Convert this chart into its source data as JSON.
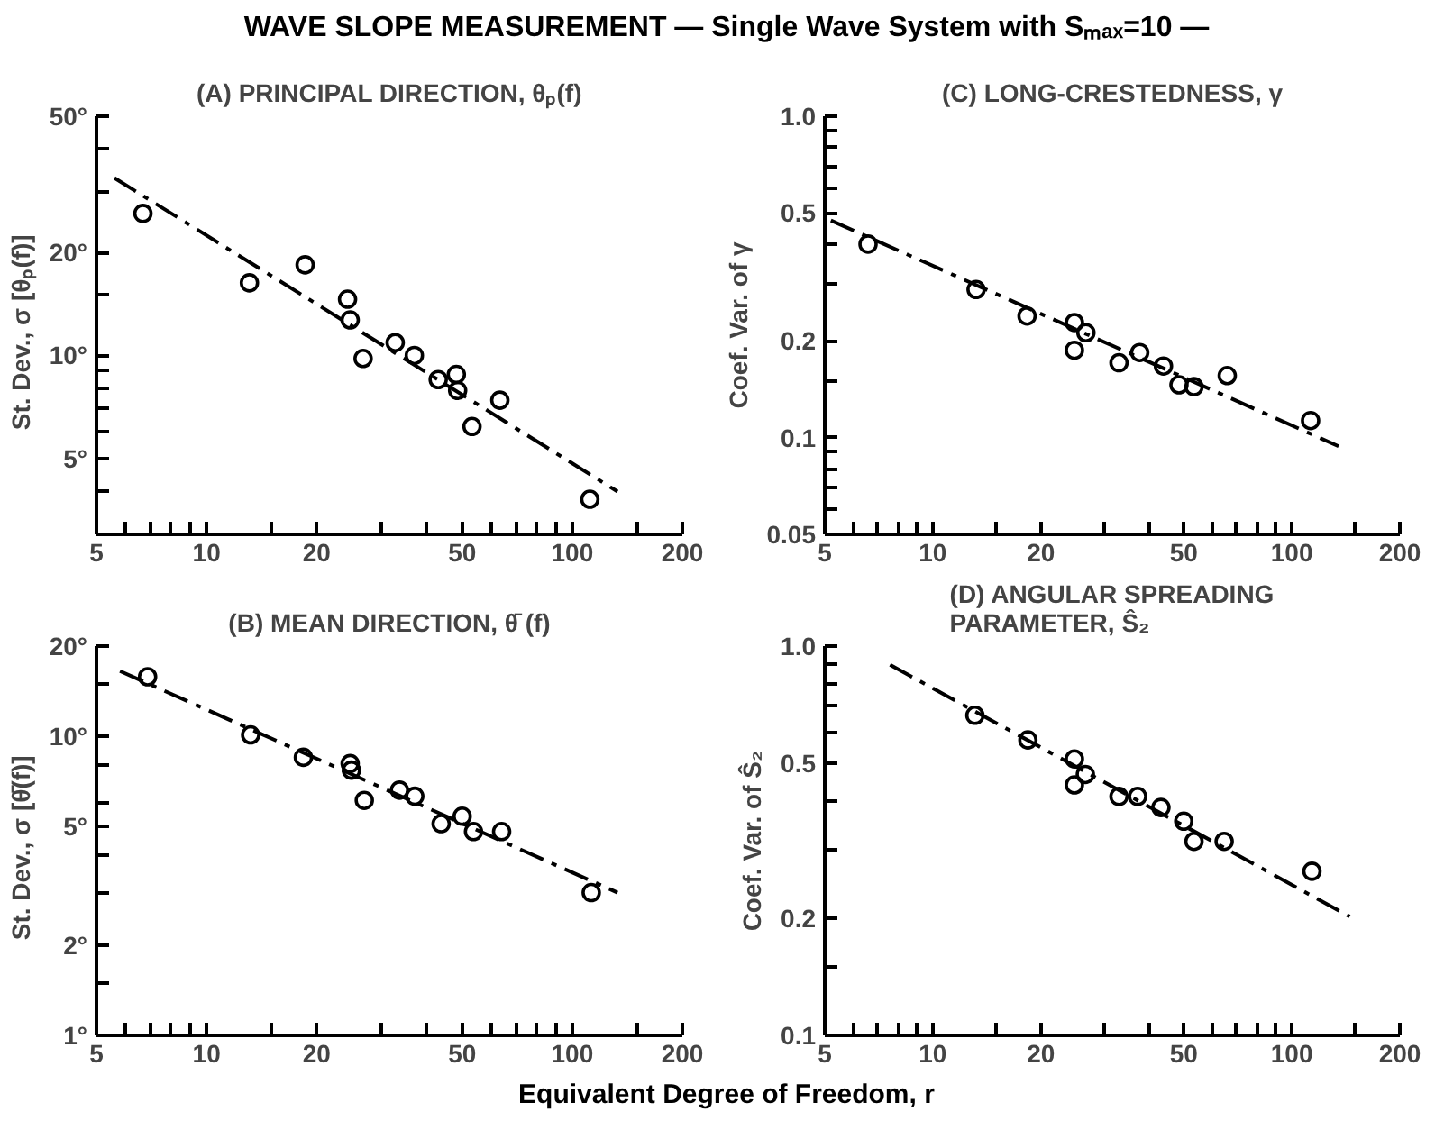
{
  "chart_data": [
    {
      "type": "other",
      "title": "WAVE SLOPE MEASUREMENT   — Single Wave System with Sₘₐₓ=10 —",
      "xlabel": "Equivalent Degree of Freedom, r"
    },
    {
      "type": "scatter",
      "title": "(A) PRINCIPAL DIRECTION, θₚ(f)",
      "ylabel": "St. Dev.,   σ [θₚ(f)]",
      "log": "xy",
      "grid": false,
      "xlim": [
        5,
        200
      ],
      "xticks": [
        5,
        {
          "value": 6,
          "label": null
        },
        {
          "value": 7,
          "label": null
        },
        {
          "value": 8,
          "label": null
        },
        {
          "value": 9,
          "label": null
        },
        10,
        {
          "value": 15,
          "label": null
        },
        20,
        {
          "value": 30,
          "label": null
        },
        {
          "value": 40,
          "label": null
        },
        50,
        {
          "value": 60,
          "label": null
        },
        {
          "value": 70,
          "label": null
        },
        {
          "value": 80,
          "label": null
        },
        {
          "value": 90,
          "label": null
        },
        100,
        {
          "value": 150,
          "label": null
        },
        200
      ],
      "ylim": [
        3,
        50
      ],
      "yticks": [
        {
          "value": 50,
          "label": "50°"
        },
        {
          "value": 40,
          "label": null
        },
        {
          "value": 30,
          "label": null
        },
        {
          "value": 20,
          "label": "20°"
        },
        {
          "value": 15,
          "label": null
        },
        {
          "value": 10,
          "label": "10°"
        },
        {
          "value": 9,
          "label": null
        },
        {
          "value": 8,
          "label": null
        },
        {
          "value": 7,
          "label": null
        },
        {
          "value": 6,
          "label": null
        },
        {
          "value": 5,
          "label": "5°"
        },
        {
          "value": 4,
          "label": null
        }
      ],
      "series": [
        {
          "type": "scatter",
          "marker": "circle",
          "color": "#000000",
          "x": [
            6.7,
            13.1,
            18.6,
            24.3,
            24.7,
            26.8,
            32.8,
            37.0,
            43.0,
            48.2,
            48.6,
            53.2,
            63.4,
            111.7
          ],
          "values": [
            26,
            16.3,
            18.4,
            14.6,
            12.7,
            9.8,
            10.9,
            10.0,
            8.5,
            8.8,
            7.9,
            6.2,
            7.4,
            3.8
          ]
        },
        {
          "type": "line",
          "line_style": "dashdot",
          "color": "#000000",
          "x": [
            5.6,
            133
          ],
          "values": [
            33,
            4.0
          ]
        }
      ]
    },
    {
      "type": "scatter",
      "title": "(C) LONG-CRESTEDNESS, γ",
      "ylabel": "Coef. Var. of γ",
      "log": "xy",
      "grid": false,
      "xlim": [
        5,
        200
      ],
      "xticks": [
        5,
        {
          "value": 6,
          "label": null
        },
        {
          "value": 7,
          "label": null
        },
        {
          "value": 8,
          "label": null
        },
        {
          "value": 9,
          "label": null
        },
        10,
        {
          "value": 15,
          "label": null
        },
        20,
        {
          "value": 30,
          "label": null
        },
        {
          "value": 40,
          "label": null
        },
        50,
        {
          "value": 60,
          "label": null
        },
        {
          "value": 70,
          "label": null
        },
        {
          "value": 80,
          "label": null
        },
        {
          "value": 90,
          "label": null
        },
        100,
        {
          "value": 150,
          "label": null
        },
        200
      ],
      "ylim": [
        0.05,
        1.0
      ],
      "yticks": [
        {
          "value": 1.0,
          "label": "1.0"
        },
        {
          "value": 0.9,
          "label": null
        },
        {
          "value": 0.8,
          "label": null
        },
        {
          "value": 0.7,
          "label": null
        },
        {
          "value": 0.6,
          "label": null
        },
        0.5,
        {
          "value": 0.4,
          "label": null
        },
        {
          "value": 0.3,
          "label": null
        },
        0.2,
        {
          "value": 0.15,
          "label": null
        },
        0.1,
        {
          "value": 0.09,
          "label": null
        },
        {
          "value": 0.08,
          "label": null
        },
        {
          "value": 0.07,
          "label": null
        },
        {
          "value": 0.06,
          "label": null
        },
        0.05
      ],
      "series": [
        {
          "type": "scatter",
          "marker": "circle",
          "color": "#000000",
          "x": [
            6.6,
            13.2,
            18.3,
            24.8,
            24.8,
            26.7,
            33.0,
            37.7,
            43.9,
            48.5,
            53.4,
            66.1,
            112.8
          ],
          "values": [
            0.4,
            0.289,
            0.239,
            0.228,
            0.187,
            0.212,
            0.171,
            0.184,
            0.167,
            0.146,
            0.144,
            0.156,
            0.113
          ]
        },
        {
          "type": "line",
          "line_style": "dashdot",
          "color": "#000000",
          "x": [
            5.2,
            135
          ],
          "values": [
            0.474,
            0.094
          ]
        }
      ]
    },
    {
      "type": "scatter",
      "title": "(B) MEAN DIRECTION, θ̄ (f)",
      "ylabel": "St. Dev.,   σ [θ̄(f)]",
      "log": "xy",
      "grid": false,
      "xlim": [
        5,
        200
      ],
      "xticks": [
        5,
        {
          "value": 6,
          "label": null
        },
        {
          "value": 7,
          "label": null
        },
        {
          "value": 8,
          "label": null
        },
        {
          "value": 9,
          "label": null
        },
        10,
        {
          "value": 15,
          "label": null
        },
        20,
        {
          "value": 30,
          "label": null
        },
        {
          "value": 40,
          "label": null
        },
        50,
        {
          "value": 60,
          "label": null
        },
        {
          "value": 70,
          "label": null
        },
        {
          "value": 80,
          "label": null
        },
        {
          "value": 90,
          "label": null
        },
        100,
        {
          "value": 150,
          "label": null
        },
        200
      ],
      "ylim": [
        1,
        20
      ],
      "yticks": [
        {
          "value": 20,
          "label": "20°"
        },
        {
          "value": 15,
          "label": null
        },
        {
          "value": 10,
          "label": "10°"
        },
        {
          "value": 8,
          "label": null
        },
        {
          "value": 6,
          "label": null
        },
        {
          "value": 5,
          "label": "5°"
        },
        {
          "value": 4,
          "label": null
        },
        {
          "value": 3,
          "label": null
        },
        {
          "value": 2,
          "label": "2°"
        },
        {
          "value": 1.5,
          "label": null
        },
        {
          "value": 1,
          "label": "1°"
        }
      ],
      "series": [
        {
          "type": "scatter",
          "marker": "circle",
          "color": "#000000",
          "x": [
            6.9,
            13.2,
            18.4,
            24.7,
            24.9,
            27.0,
            33.7,
            37.1,
            43.8,
            50.0,
            53.7,
            64.1,
            112.7
          ],
          "values": [
            15.8,
            10.1,
            8.5,
            8.1,
            7.7,
            6.1,
            6.6,
            6.3,
            5.1,
            5.4,
            4.8,
            4.8,
            3.0
          ]
        },
        {
          "type": "line",
          "line_style": "dashdot",
          "color": "#000000",
          "x": [
            5.8,
            133
          ],
          "values": [
            16.5,
            3.0
          ]
        }
      ]
    },
    {
      "type": "scatter",
      "title": "(D) ANGULAR SPREADING\nPARAMETER, Ŝ₂",
      "ylabel": "Coef. Var. of Ŝ₂",
      "log": "xy",
      "grid": false,
      "xlim": [
        5,
        200
      ],
      "xticks": [
        5,
        {
          "value": 6,
          "label": null
        },
        {
          "value": 7,
          "label": null
        },
        {
          "value": 8,
          "label": null
        },
        {
          "value": 9,
          "label": null
        },
        10,
        {
          "value": 15,
          "label": null
        },
        20,
        {
          "value": 30,
          "label": null
        },
        {
          "value": 40,
          "label": null
        },
        50,
        {
          "value": 60,
          "label": null
        },
        {
          "value": 70,
          "label": null
        },
        {
          "value": 80,
          "label": null
        },
        {
          "value": 90,
          "label": null
        },
        100,
        {
          "value": 150,
          "label": null
        },
        200
      ],
      "ylim": [
        0.1,
        1.0
      ],
      "yticks": [
        {
          "value": 1.0,
          "label": "1.0"
        },
        {
          "value": 0.9,
          "label": null
        },
        {
          "value": 0.8,
          "label": null
        },
        {
          "value": 0.7,
          "label": null
        },
        {
          "value": 0.6,
          "label": null
        },
        0.5,
        {
          "value": 0.4,
          "label": null
        },
        {
          "value": 0.3,
          "label": null
        },
        0.2,
        {
          "value": 0.15,
          "label": null
        },
        0.1
      ],
      "series": [
        {
          "type": "scatter",
          "marker": "circle",
          "color": "#000000",
          "x": [
            13.1,
            18.4,
            24.8,
            24.8,
            26.6,
            33.0,
            37.2,
            43.2,
            50.0,
            53.4,
            64.8,
            113.8
          ],
          "values": [
            0.664,
            0.574,
            0.513,
            0.44,
            0.468,
            0.411,
            0.411,
            0.385,
            0.355,
            0.315,
            0.315,
            0.264
          ]
        },
        {
          "type": "line",
          "line_style": "dashdot",
          "color": "#000000",
          "x": [
            7.6,
            145
          ],
          "values": [
            0.895,
            0.202
          ]
        }
      ]
    }
  ]
}
